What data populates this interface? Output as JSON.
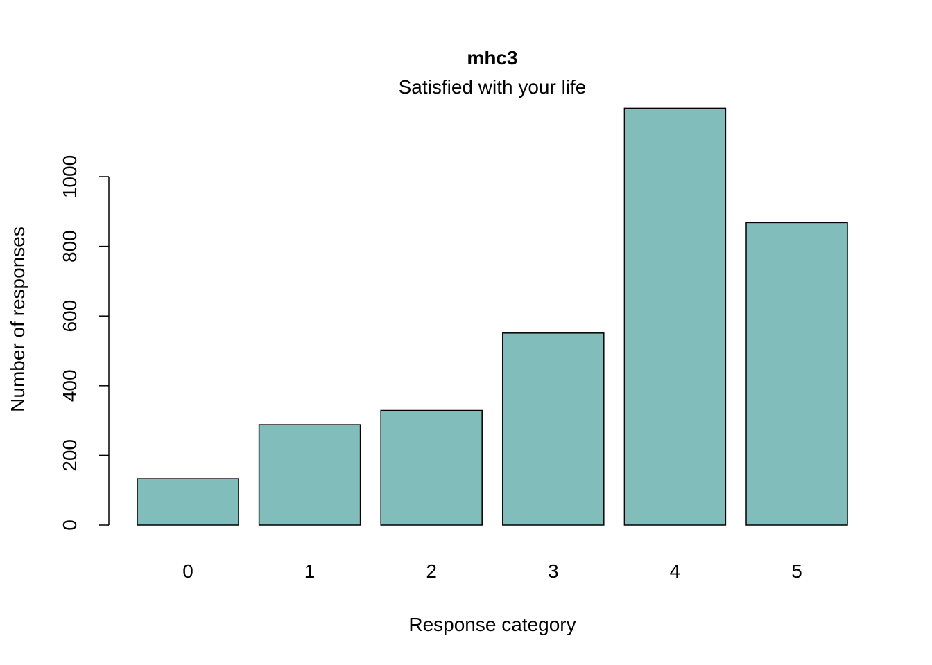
{
  "chart_data": {
    "type": "bar",
    "title": "mhc3",
    "subtitle": "Satisfied with your life",
    "xlabel": "Response category",
    "ylabel": "Number of responses",
    "categories": [
      "0",
      "1",
      "2",
      "3",
      "4",
      "5"
    ],
    "values": [
      133,
      288,
      329,
      551,
      1196,
      868
    ],
    "yticks": [
      0,
      200,
      400,
      600,
      800,
      1000
    ],
    "ylim": [
      0,
      1196
    ],
    "grid": false,
    "bar_color": "#80BDBB",
    "bar_edge_color": "#000000"
  }
}
